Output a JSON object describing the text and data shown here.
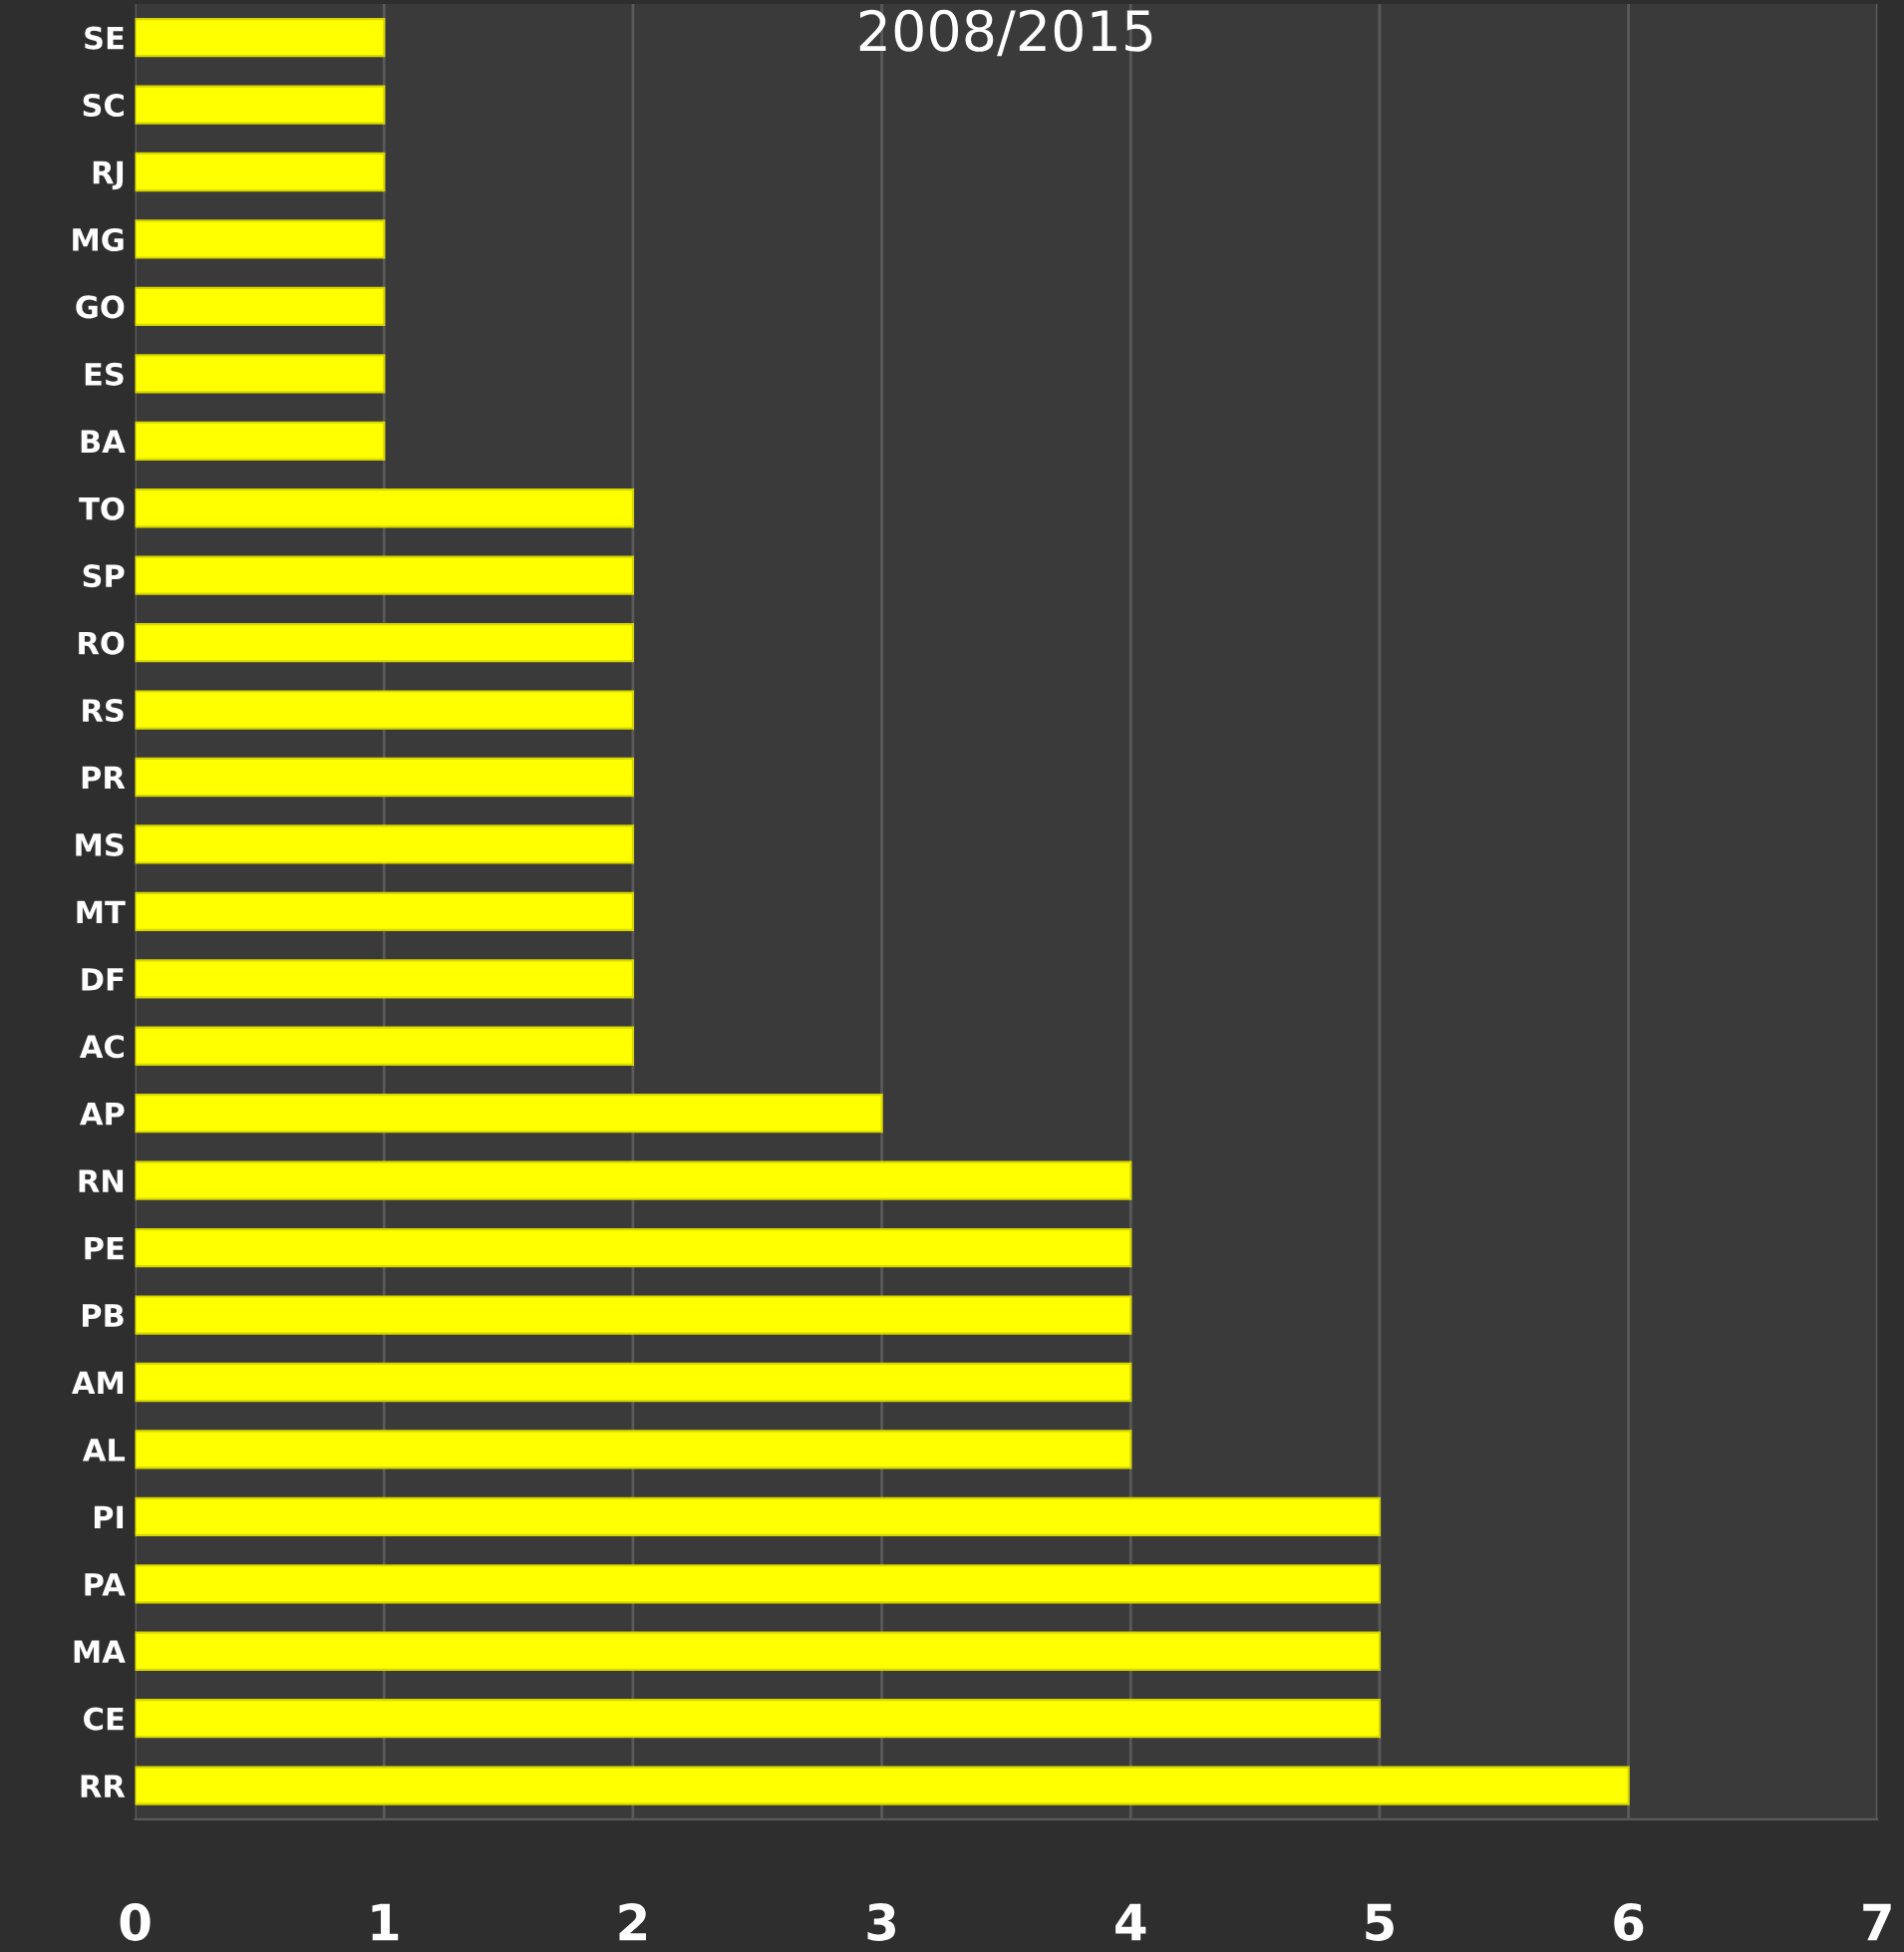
{
  "chart_data": {
    "type": "bar",
    "orientation": "horizontal",
    "title": "2008/2015",
    "categories": [
      "SE",
      "SC",
      "RJ",
      "MG",
      "GO",
      "ES",
      "BA",
      "TO",
      "SP",
      "RO",
      "RS",
      "PR",
      "MS",
      "MT",
      "DF",
      "AC",
      "AP",
      "RN",
      "PE",
      "PB",
      "AM",
      "AL",
      "PI",
      "PA",
      "MA",
      "CE",
      "RR"
    ],
    "values": [
      1,
      1,
      1,
      1,
      1,
      1,
      1,
      2,
      2,
      2,
      2,
      2,
      2,
      2,
      2,
      2,
      3,
      4,
      4,
      4,
      4,
      4,
      5,
      5,
      5,
      5,
      6
    ],
    "color": "#ffff00",
    "xlim": [
      0,
      7
    ],
    "xticks": [
      0,
      1,
      2,
      3,
      4,
      5,
      6,
      7
    ],
    "grid": "x",
    "legend": false
  }
}
